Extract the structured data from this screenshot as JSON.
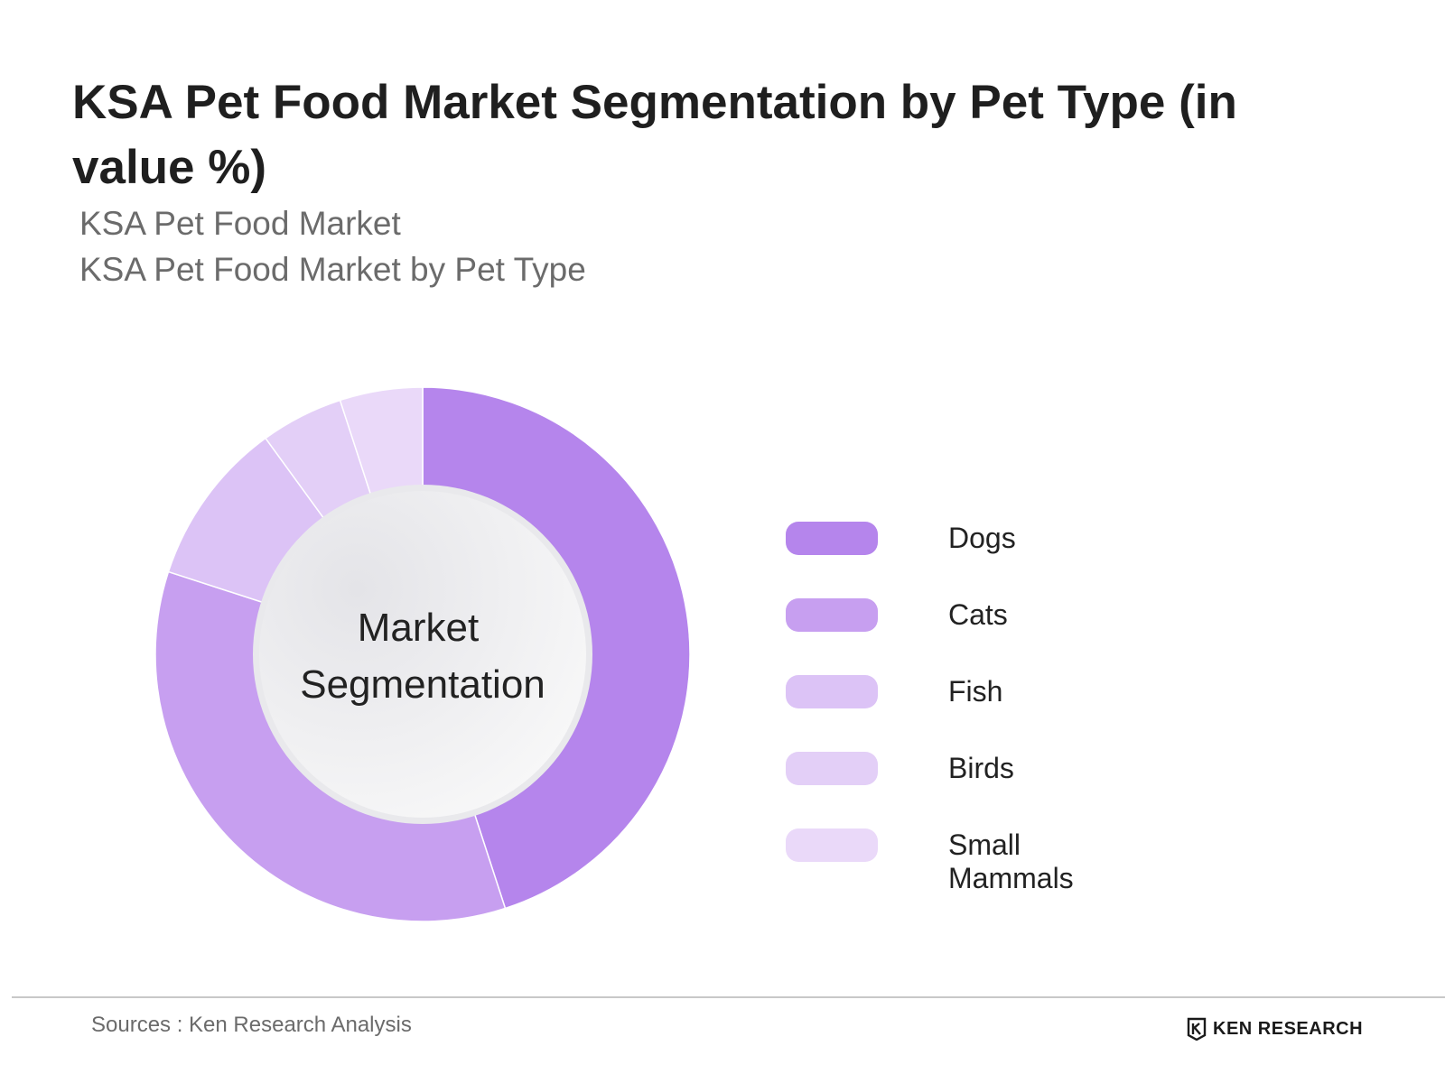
{
  "header": {
    "title": "KSA Pet Food Market Segmentation by Pet Type (in value %)",
    "subtitle_1": "KSA Pet Food Market",
    "subtitle_2": "KSA Pet Food Market by Pet Type"
  },
  "chart_data": {
    "type": "pie",
    "center_label_line1": "Market",
    "center_label_line2": "Segmentation",
    "categories": [
      "Dogs",
      "Cats",
      "Fish",
      "Birds",
      "Small Mammals"
    ],
    "values": [
      45,
      35,
      10,
      5,
      5
    ],
    "colors": [
      "#b585ec",
      "#c79ff0",
      "#dcc3f6",
      "#e3cff7",
      "#ead9f9"
    ],
    "legend_position": "right"
  },
  "footer": {
    "source": "Sources : Ken Research Analysis",
    "brand": "KEN RESEARCH",
    "brand_icon": "ken-research-logo-icon"
  }
}
